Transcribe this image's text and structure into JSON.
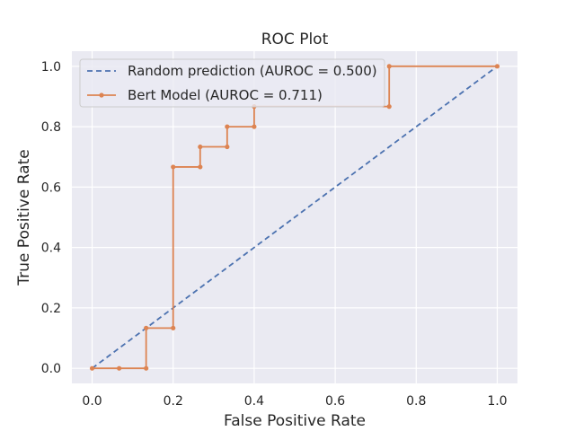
{
  "chart_data": {
    "type": "line",
    "title": "ROC Plot",
    "xlabel": "False Positive Rate",
    "ylabel": "True Positive Rate",
    "xlim": [
      -0.05,
      1.05
    ],
    "ylim": [
      -0.05,
      1.05
    ],
    "xticks": [
      "0.0",
      "0.2",
      "0.4",
      "0.6",
      "0.8",
      "1.0"
    ],
    "yticks": [
      "0.0",
      "0.2",
      "0.4",
      "0.6",
      "0.8",
      "1.0"
    ],
    "grid": true,
    "legend_position": "upper-left",
    "background_color": "#eaeaf2",
    "series": [
      {
        "name": "Random prediction (AUROC = 0.500)",
        "color": "#4c72b0",
        "style": "dashed",
        "x": [
          0.0,
          1.0
        ],
        "y": [
          0.0,
          1.0
        ]
      },
      {
        "name": "Bert Model (AUROC = 0.711)",
        "color": "#dd8452",
        "style": "steps-with-markers",
        "x": [
          0.0,
          0.0667,
          0.1333,
          0.1333,
          0.2,
          0.2,
          0.2667,
          0.2667,
          0.3333,
          0.3333,
          0.4,
          0.4,
          0.7333,
          0.7333,
          1.0
        ],
        "y": [
          0.0,
          0.0,
          0.0,
          0.1333,
          0.1333,
          0.6667,
          0.6667,
          0.7333,
          0.7333,
          0.8,
          0.8,
          0.8667,
          0.8667,
          1.0,
          1.0
        ]
      }
    ]
  }
}
